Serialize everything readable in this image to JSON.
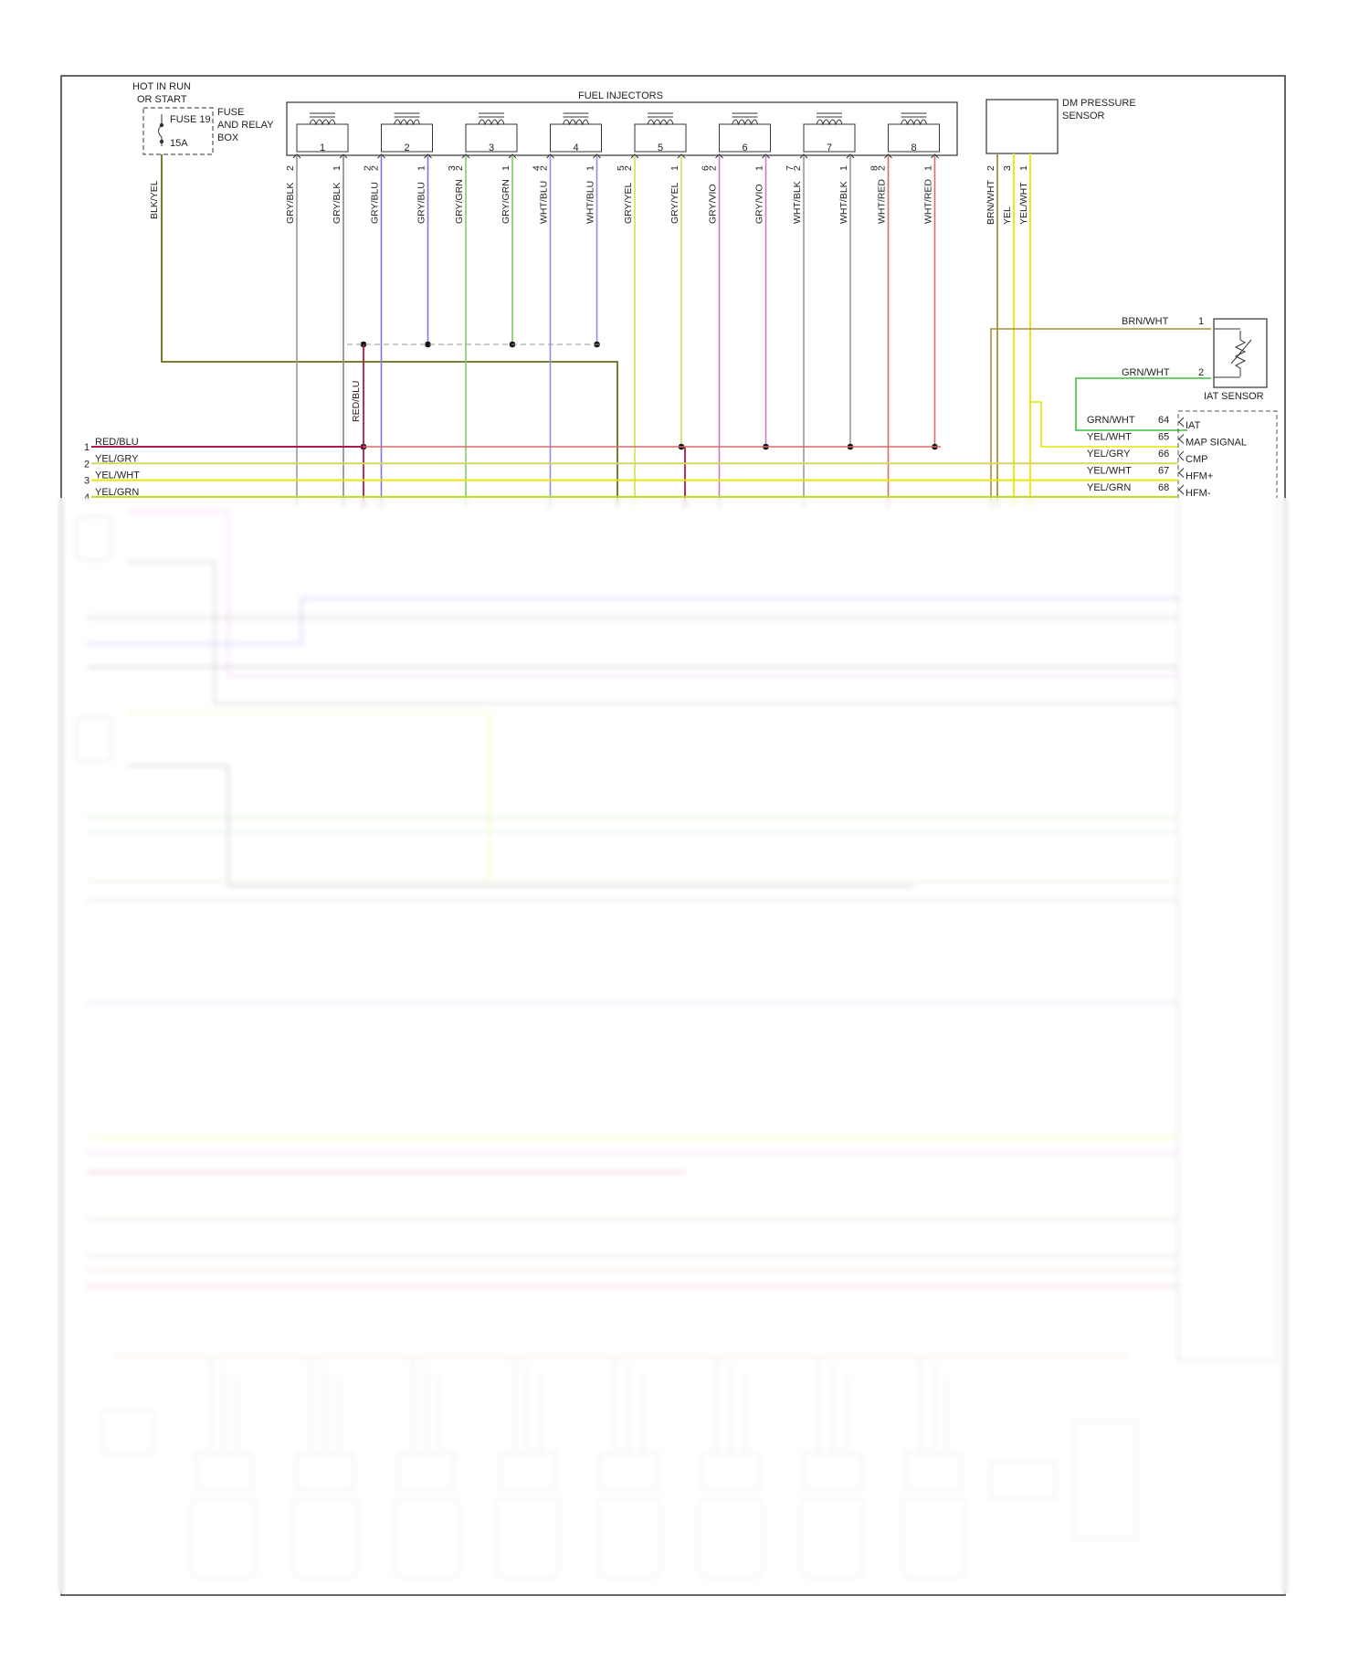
{
  "hot_label": [
    "HOT IN RUN",
    "OR START"
  ],
  "fuse": {
    "name": "FUSE 19",
    "rating": "15A",
    "box": [
      "FUSE",
      "AND RELAY",
      "BOX"
    ]
  },
  "feed_wire": "BLK/YEL",
  "injectors_title": "FUEL INJECTORS",
  "injectors": [
    {
      "num": "1",
      "pin_a": "2",
      "pin_b": "1",
      "wire_a": "GRY/BLK",
      "wire_b": "GRY/BLK",
      "bus_pin": "",
      "color_a": "#9a9a9a",
      "color_b": "#8a8a8a"
    },
    {
      "num": "2",
      "pin_a": "2",
      "pin_b": "1",
      "wire_a": "GRY/BLU",
      "wire_b": "GRY/BLU",
      "bus_pin": "2",
      "color_a": "#7d7bd1",
      "color_b": "#7d7bd1"
    },
    {
      "num": "3",
      "pin_a": "2",
      "pin_b": "1",
      "wire_a": "GRY/GRN",
      "wire_b": "GRY/GRN",
      "bus_pin": "3",
      "color_a": "#7ccf6a",
      "color_b": "#7ccf6a"
    },
    {
      "num": "4",
      "pin_a": "2",
      "pin_b": "1",
      "wire_a": "WHT/BLU",
      "wire_b": "WHT/BLU",
      "bus_pin": "4",
      "color_a": "#8c8fe0",
      "color_b": "#8c8fe0"
    },
    {
      "num": "5",
      "pin_a": "2",
      "pin_b": "1",
      "wire_a": "GRY/YEL",
      "wire_b": "GRY/YEL",
      "bus_pin": "5",
      "color_a": "#d8dc5a",
      "color_b": "#d8dc5a"
    },
    {
      "num": "6",
      "pin_a": "2",
      "pin_b": "1",
      "wire_a": "GRY/VIO",
      "wire_b": "GRY/VIO",
      "bus_pin": "6",
      "color_a": "#cc77cc",
      "color_b": "#cc77cc"
    },
    {
      "num": "7",
      "pin_a": "2",
      "pin_b": "1",
      "wire_a": "WHT/BLK",
      "wire_b": "WHT/BLK",
      "bus_pin": "7",
      "color_a": "#999999",
      "color_b": "#999999"
    },
    {
      "num": "8",
      "pin_a": "2",
      "pin_b": "1",
      "wire_a": "WHT/RED",
      "wire_b": "WHT/RED",
      "bus_pin": "8",
      "color_a": "#d86a6a",
      "color_b": "#d86a6a"
    }
  ],
  "dm_sensor": {
    "label": [
      "DM PRESSURE",
      "SENSOR"
    ],
    "pins": [
      "2",
      "3",
      "1"
    ],
    "wires": [
      "BRN/WHT",
      "YEL",
      "YEL/WHT"
    ]
  },
  "iat_sensor": {
    "label": "IAT SENSOR",
    "pins": [
      "1",
      "2"
    ],
    "wires": [
      "BRN/WHT",
      "GRN/WHT"
    ]
  },
  "splice_wire": "RED/BLU",
  "left_connector": [
    {
      "num": "1",
      "wire": "RED/BLU"
    },
    {
      "num": "2",
      "wire": "YEL/GRY"
    },
    {
      "num": "3",
      "wire": "YEL/WHT"
    },
    {
      "num": "4",
      "wire": "YEL/GRN"
    }
  ],
  "pcm_pins": [
    {
      "wire": "GRN/WHT",
      "pin": "64",
      "func": "IAT"
    },
    {
      "wire": "YEL/WHT",
      "pin": "65",
      "func": "MAP SIGNAL"
    },
    {
      "wire": "YEL/GRY",
      "pin": "66",
      "func": "CMP"
    },
    {
      "wire": "YEL/WHT",
      "pin": "67",
      "func": "HFM+"
    },
    {
      "wire": "YEL/GRN",
      "pin": "68",
      "func": "HFM-"
    }
  ],
  "colors": {
    "red_blu": "#b0184a",
    "yel": "#e8e800",
    "yel_gry": "#d6d660",
    "yel_grn": "#b7dc2a",
    "brn_wht": "#b08a3a",
    "grn_wht": "#3fbf3f",
    "blk_yel": "#6b6b1b",
    "frame": "#333333"
  }
}
